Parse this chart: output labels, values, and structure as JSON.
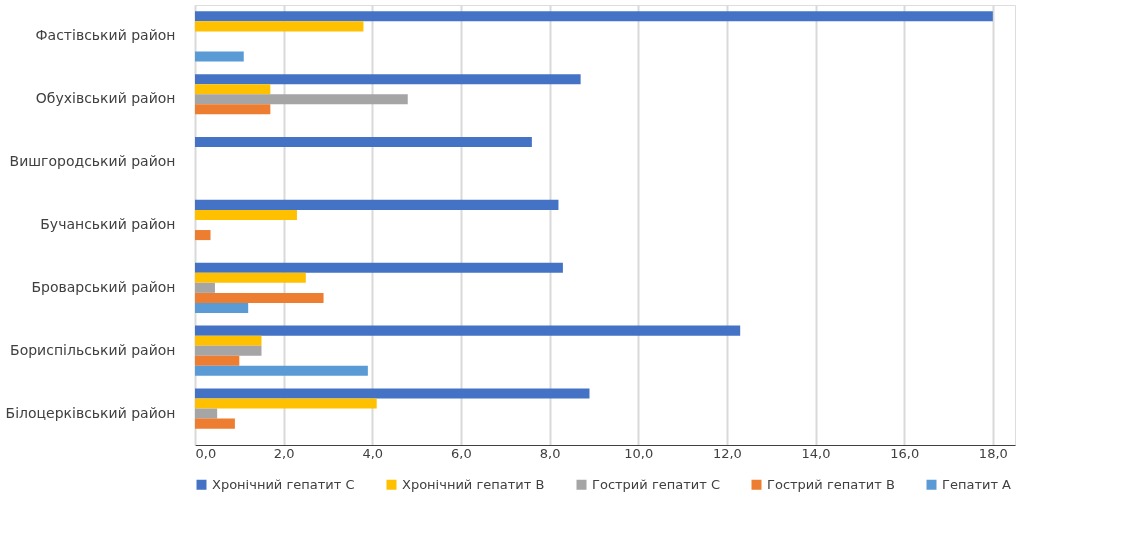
{
  "chart_data": {
    "type": "bar",
    "orientation": "horizontal",
    "categories": [
      "Фастівський район",
      "Обухівський район",
      "Вишгородський район",
      "Бучанський район",
      "Броварський район",
      "Бориспільський район",
      "Білоцерківський район"
    ],
    "series": [
      {
        "name": "Хронічний гепатит С",
        "color": "#4472c4",
        "values": [
          18.0,
          8.7,
          7.6,
          8.2,
          8.3,
          12.3,
          8.9
        ]
      },
      {
        "name": "Хронічний гепатит В",
        "color": "#ffc000",
        "values": [
          3.8,
          1.7,
          0,
          2.3,
          2.5,
          1.5,
          4.1
        ]
      },
      {
        "name": "Гострий гепатит С",
        "color": "#a5a5a5",
        "values": [
          0,
          4.8,
          0,
          0,
          0.45,
          1.5,
          0.5
        ]
      },
      {
        "name": "Гострий гепатит В",
        "color": "#ed7d31",
        "values": [
          0,
          1.7,
          0,
          0.35,
          2.9,
          1.0,
          0.9
        ]
      },
      {
        "name": "Гепатит А",
        "color": "#5b9bd5",
        "values": [
          1.1,
          0,
          0,
          0,
          1.2,
          3.9,
          0
        ]
      }
    ],
    "xlim": [
      0,
      18.5
    ],
    "xticks": [
      {
        "value": 0,
        "label": "0,0"
      },
      {
        "value": 2,
        "label": "2,0"
      },
      {
        "value": 4,
        "label": "4,0"
      },
      {
        "value": 6,
        "label": "6,0"
      },
      {
        "value": 8,
        "label": "8,0"
      },
      {
        "value": 10,
        "label": "10,0"
      },
      {
        "value": 12,
        "label": "12,0"
      },
      {
        "value": 14,
        "label": "14,0"
      },
      {
        "value": 16,
        "label": "16,0"
      },
      {
        "value": 18,
        "label": "18,0"
      }
    ],
    "grid": "x",
    "legend": "bottom"
  }
}
